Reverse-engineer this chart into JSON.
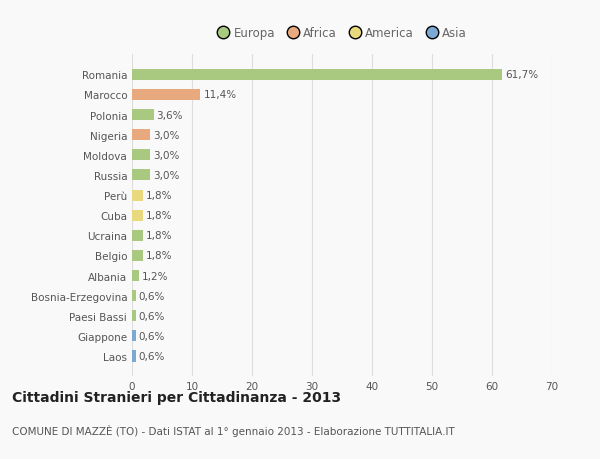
{
  "categories": [
    "Romania",
    "Marocco",
    "Polonia",
    "Nigeria",
    "Moldova",
    "Russia",
    "Perù",
    "Cuba",
    "Ucraina",
    "Belgio",
    "Albania",
    "Bosnia-Erzegovina",
    "Paesi Bassi",
    "Giappone",
    "Laos"
  ],
  "values": [
    61.7,
    11.4,
    3.6,
    3.0,
    3.0,
    3.0,
    1.8,
    1.8,
    1.8,
    1.8,
    1.2,
    0.6,
    0.6,
    0.6,
    0.6
  ],
  "labels": [
    "61,7%",
    "11,4%",
    "3,6%",
    "3,0%",
    "3,0%",
    "3,0%",
    "1,8%",
    "1,8%",
    "1,8%",
    "1,8%",
    "1,2%",
    "0,6%",
    "0,6%",
    "0,6%",
    "0,6%"
  ],
  "colors": [
    "#a8c97f",
    "#e8a97e",
    "#a8c97f",
    "#e8a97e",
    "#a8c97f",
    "#a8c97f",
    "#e8d87e",
    "#e8d87e",
    "#a8c97f",
    "#a8c97f",
    "#a8c97f",
    "#a8c97f",
    "#a8c97f",
    "#7ca8d4",
    "#7ca8d4"
  ],
  "legend_labels": [
    "Europa",
    "Africa",
    "America",
    "Asia"
  ],
  "legend_colors": [
    "#a8c97f",
    "#e8a97e",
    "#e8d87e",
    "#7ca8d4"
  ],
  "xlim": [
    0,
    70
  ],
  "xticks": [
    0,
    10,
    20,
    30,
    40,
    50,
    60,
    70
  ],
  "title": "Cittadini Stranieri per Cittadinanza - 2013",
  "subtitle": "COMUNE DI MAZZÈ (TO) - Dati ISTAT al 1° gennaio 2013 - Elaborazione TUTTITALIA.IT",
  "bg_color": "#f9f9f9",
  "bar_height": 0.55,
  "title_fontsize": 10,
  "subtitle_fontsize": 7.5,
  "label_fontsize": 7.5,
  "tick_fontsize": 7.5,
  "legend_fontsize": 8.5
}
